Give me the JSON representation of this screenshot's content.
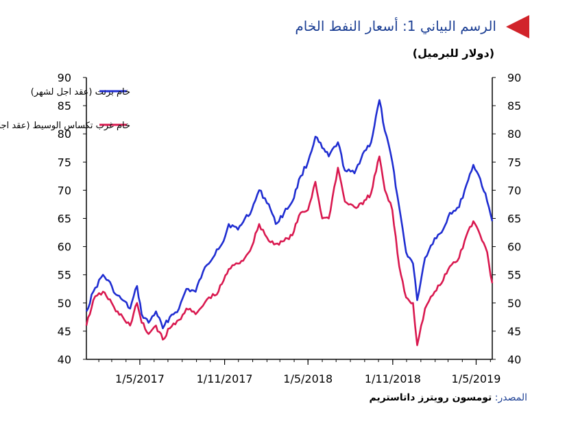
{
  "title": "الرسم البياني 1: أسعار النفط الخام",
  "subtitle": "(دولار للبرميل)",
  "source_label": "المصدر:",
  "source_text": "تومسون رويترز داتاستريم",
  "chart_data": {
    "type": "line",
    "title": "الرسم البياني 1: أسعار النفط الخام",
    "ylabel": "(دولار للبرميل)",
    "ylim": [
      40,
      90
    ],
    "yticks": [
      40,
      45,
      50,
      55,
      60,
      65,
      70,
      75,
      80,
      85,
      90
    ],
    "xlim": [
      "2017-01-05",
      "2019-06-05"
    ],
    "xticks": [
      "1/5/2017",
      "1/11/2017",
      "1/5/2018",
      "1/11/2018",
      "1/5/2019"
    ],
    "xtick_dates": [
      "2017-05-01",
      "2017-11-01",
      "2018-05-01",
      "2018-11-01",
      "2019-05-01"
    ],
    "grid": false,
    "legend_position": "top-left",
    "series": [
      {
        "name": "خام برنت (عقد اجل لشهر)",
        "color": "#1f2dd1",
        "x": [
          "2017-01-05",
          "2017-01-20",
          "2017-02-10",
          "2017-03-01",
          "2017-03-10",
          "2017-03-25",
          "2017-04-10",
          "2017-04-25",
          "2017-05-05",
          "2017-05-20",
          "2017-06-05",
          "2017-06-20",
          "2017-07-05",
          "2017-07-25",
          "2017-08-10",
          "2017-08-30",
          "2017-09-15",
          "2017-09-28",
          "2017-10-15",
          "2017-10-30",
          "2017-11-10",
          "2017-11-30",
          "2017-12-15",
          "2017-12-30",
          "2018-01-15",
          "2018-02-05",
          "2018-02-20",
          "2018-03-10",
          "2018-03-28",
          "2018-04-15",
          "2018-05-01",
          "2018-05-17",
          "2018-06-01",
          "2018-06-15",
          "2018-07-05",
          "2018-07-20",
          "2018-08-10",
          "2018-08-28",
          "2018-09-15",
          "2018-10-03",
          "2018-10-15",
          "2018-10-31",
          "2018-11-15",
          "2018-11-30",
          "2018-12-15",
          "2018-12-24",
          "2019-01-10",
          "2019-01-31",
          "2019-02-15",
          "2019-03-05",
          "2019-03-25",
          "2019-04-10",
          "2019-04-25",
          "2019-05-10",
          "2019-05-25",
          "2019-06-05"
        ],
        "values": [
          48.5,
          52,
          55,
          53,
          51.5,
          50.5,
          49,
          53,
          48,
          46.5,
          48.5,
          45.5,
          47.5,
          49,
          52.5,
          52,
          55.5,
          57,
          59.5,
          61,
          64,
          63,
          65,
          66.5,
          70,
          67.5,
          64,
          66,
          68,
          72.5,
          75,
          79.5,
          77.5,
          76,
          78.5,
          73.5,
          73,
          76.5,
          78.5,
          86,
          80.5,
          75,
          67,
          59,
          57,
          50.5,
          58,
          61.5,
          62.5,
          66,
          67,
          71,
          74.5,
          72,
          68,
          64.5
        ]
      },
      {
        "name": "خام غرب تكساس الوسيط (عقد اجل لشهر)",
        "color": "#d9184f",
        "x": [
          "2017-01-05",
          "2017-01-20",
          "2017-02-10",
          "2017-03-01",
          "2017-03-10",
          "2017-03-25",
          "2017-04-10",
          "2017-04-25",
          "2017-05-05",
          "2017-05-20",
          "2017-06-05",
          "2017-06-20",
          "2017-07-05",
          "2017-07-25",
          "2017-08-10",
          "2017-08-30",
          "2017-09-15",
          "2017-09-28",
          "2017-10-15",
          "2017-10-30",
          "2017-11-10",
          "2017-11-30",
          "2017-12-15",
          "2017-12-30",
          "2018-01-15",
          "2018-02-05",
          "2018-02-20",
          "2018-03-10",
          "2018-03-28",
          "2018-04-15",
          "2018-05-01",
          "2018-05-17",
          "2018-06-01",
          "2018-06-15",
          "2018-07-05",
          "2018-07-20",
          "2018-08-10",
          "2018-08-28",
          "2018-09-15",
          "2018-10-03",
          "2018-10-15",
          "2018-10-31",
          "2018-11-15",
          "2018-11-30",
          "2018-12-15",
          "2018-12-24",
          "2019-01-10",
          "2019-01-31",
          "2019-02-15",
          "2019-03-05",
          "2019-03-25",
          "2019-04-10",
          "2019-04-25",
          "2019-05-10",
          "2019-05-25",
          "2019-06-05"
        ],
        "values": [
          46,
          50.5,
          52,
          50,
          48.5,
          47.5,
          46,
          50,
          46.5,
          44.5,
          46,
          43.5,
          45.5,
          47,
          49,
          48,
          49.5,
          51,
          51.5,
          54,
          56,
          57,
          58,
          60,
          64,
          61,
          60.5,
          61,
          62,
          66,
          66.5,
          71.5,
          65,
          65,
          74,
          68,
          67,
          67.5,
          69.5,
          76,
          70,
          66.5,
          56.5,
          51,
          50,
          42.5,
          49,
          52,
          53.5,
          56.5,
          58,
          62,
          64.5,
          62,
          59,
          53.5
        ]
      }
    ]
  }
}
